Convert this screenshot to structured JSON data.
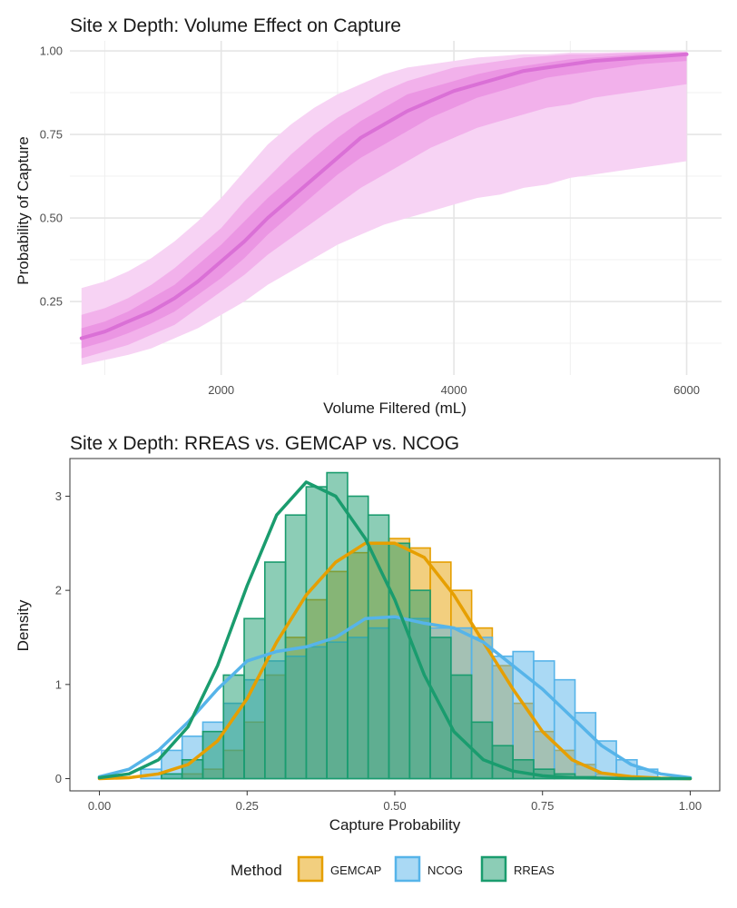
{
  "chart_data": [
    {
      "type": "line",
      "title": "Site x Depth: Volume Effect on Capture",
      "xlabel": "Volume Filtered (mL)",
      "ylabel": "Probability of Capture",
      "xlim": [
        700,
        6300
      ],
      "ylim": [
        0.03,
        1.03
      ],
      "xticks": [
        2000,
        4000,
        6000
      ],
      "xtick_labels": [
        "2000",
        "4000",
        "6000"
      ],
      "yticks": [
        0.25,
        0.5,
        0.75,
        1.0
      ],
      "ytick_labels": [
        "0.25",
        "0.50",
        "0.75",
        "1.00"
      ],
      "grid": true,
      "line_color": "#da70d6",
      "x": [
        800,
        1000,
        1200,
        1400,
        1600,
        1800,
        2000,
        2200,
        2400,
        2600,
        2800,
        3000,
        3200,
        3400,
        3600,
        3800,
        4000,
        4200,
        4400,
        4600,
        4800,
        5000,
        5200,
        5400,
        5600,
        5800,
        6000
      ],
      "median": [
        0.14,
        0.16,
        0.19,
        0.22,
        0.26,
        0.31,
        0.37,
        0.43,
        0.5,
        0.56,
        0.62,
        0.68,
        0.74,
        0.78,
        0.82,
        0.85,
        0.88,
        0.9,
        0.92,
        0.94,
        0.95,
        0.96,
        0.97,
        0.975,
        0.98,
        0.985,
        0.99
      ],
      "bands": [
        {
          "level": "outer",
          "lower": [
            0.06,
            0.075,
            0.09,
            0.11,
            0.14,
            0.17,
            0.21,
            0.25,
            0.3,
            0.34,
            0.38,
            0.42,
            0.45,
            0.48,
            0.5,
            0.52,
            0.54,
            0.56,
            0.57,
            0.59,
            0.6,
            0.62,
            0.63,
            0.64,
            0.65,
            0.66,
            0.67
          ],
          "upper": [
            0.29,
            0.31,
            0.34,
            0.38,
            0.43,
            0.49,
            0.56,
            0.64,
            0.72,
            0.78,
            0.83,
            0.87,
            0.9,
            0.93,
            0.95,
            0.96,
            0.97,
            0.98,
            0.985,
            0.99,
            0.99,
            0.995,
            0.995,
            0.996,
            0.997,
            0.998,
            0.999
          ]
        },
        {
          "level": "middle",
          "lower": [
            0.08,
            0.1,
            0.12,
            0.15,
            0.18,
            0.23,
            0.28,
            0.33,
            0.39,
            0.44,
            0.49,
            0.54,
            0.59,
            0.63,
            0.67,
            0.71,
            0.74,
            0.77,
            0.79,
            0.81,
            0.83,
            0.84,
            0.86,
            0.87,
            0.88,
            0.89,
            0.9
          ],
          "upper": [
            0.21,
            0.23,
            0.26,
            0.3,
            0.35,
            0.41,
            0.47,
            0.55,
            0.62,
            0.69,
            0.75,
            0.8,
            0.84,
            0.88,
            0.91,
            0.93,
            0.95,
            0.96,
            0.97,
            0.98,
            0.985,
            0.99,
            0.99,
            0.993,
            0.995,
            0.996,
            0.997
          ]
        },
        {
          "level": "inner",
          "lower": [
            0.11,
            0.13,
            0.155,
            0.185,
            0.22,
            0.27,
            0.32,
            0.38,
            0.45,
            0.51,
            0.57,
            0.63,
            0.68,
            0.72,
            0.76,
            0.8,
            0.83,
            0.86,
            0.88,
            0.9,
            0.92,
            0.93,
            0.94,
            0.95,
            0.96,
            0.965,
            0.97
          ],
          "upper": [
            0.17,
            0.19,
            0.22,
            0.26,
            0.3,
            0.36,
            0.42,
            0.49,
            0.56,
            0.62,
            0.68,
            0.74,
            0.79,
            0.83,
            0.87,
            0.89,
            0.91,
            0.93,
            0.945,
            0.955,
            0.965,
            0.975,
            0.98,
            0.985,
            0.99,
            0.99,
            0.993
          ]
        }
      ],
      "band_colors": [
        "#f7d3f4",
        "#f2b1eb",
        "#eb96e3"
      ]
    },
    {
      "type": "histogram",
      "title": "Site x Depth: RREAS vs. GEMCAP vs. NCOG",
      "xlabel": "Capture Probability",
      "ylabel": "Density",
      "xlim": [
        -0.05,
        1.05
      ],
      "ylim": [
        -0.13,
        3.4
      ],
      "xticks": [
        0,
        0.25,
        0.5,
        0.75,
        1.0
      ],
      "xtick_labels": [
        "0.00",
        "0.25",
        "0.50",
        "0.75",
        "1.00"
      ],
      "yticks": [
        0,
        1,
        2,
        3
      ],
      "ytick_labels": [
        "0",
        "1",
        "2",
        "3"
      ],
      "bin_edges": [
        0.0,
        0.035,
        0.07,
        0.105,
        0.14,
        0.175,
        0.21,
        0.245,
        0.28,
        0.315,
        0.35,
        0.385,
        0.42,
        0.455,
        0.49,
        0.525,
        0.56,
        0.595,
        0.63,
        0.665,
        0.7,
        0.735,
        0.77,
        0.805,
        0.84,
        0.875,
        0.91,
        0.945,
        0.98
      ],
      "density_x": [
        0.0,
        0.05,
        0.1,
        0.15,
        0.2,
        0.25,
        0.3,
        0.35,
        0.4,
        0.45,
        0.5,
        0.55,
        0.6,
        0.65,
        0.7,
        0.75,
        0.8,
        0.85,
        0.9,
        0.95,
        1.0
      ],
      "series": [
        {
          "name": "GEMCAP",
          "color": "#e69f00",
          "hist": [
            0,
            0,
            0,
            0,
            0.05,
            0.1,
            0.3,
            0.6,
            1.1,
            1.5,
            1.9,
            2.2,
            2.4,
            2.5,
            2.55,
            2.45,
            2.3,
            2.0,
            1.6,
            1.2,
            0.8,
            0.5,
            0.3,
            0.15,
            0.05,
            0.02,
            0,
            0
          ],
          "density": [
            0,
            0.01,
            0.05,
            0.15,
            0.4,
            0.85,
            1.45,
            1.95,
            2.3,
            2.5,
            2.5,
            2.35,
            1.95,
            1.45,
            0.95,
            0.5,
            0.2,
            0.06,
            0.02,
            0.005,
            0
          ]
        },
        {
          "name": "NCOG",
          "color": "#56b4e9",
          "hist": [
            0,
            0,
            0.1,
            0.3,
            0.45,
            0.6,
            0.8,
            1.05,
            1.25,
            1.3,
            1.4,
            1.45,
            1.5,
            1.6,
            1.7,
            1.7,
            1.6,
            1.6,
            1.5,
            1.3,
            1.35,
            1.25,
            1.05,
            0.7,
            0.4,
            0.2,
            0.1,
            0
          ],
          "density": [
            0.02,
            0.1,
            0.3,
            0.6,
            0.95,
            1.25,
            1.35,
            1.4,
            1.5,
            1.7,
            1.72,
            1.65,
            1.6,
            1.45,
            1.2,
            0.95,
            0.65,
            0.35,
            0.15,
            0.05,
            0.01
          ]
        },
        {
          "name": "RREAS",
          "color": "#1a9c6e",
          "hist": [
            0,
            0,
            0,
            0.05,
            0.2,
            0.5,
            1.1,
            1.7,
            2.3,
            2.8,
            3.1,
            3.25,
            3.0,
            2.8,
            2.5,
            2.0,
            1.5,
            1.1,
            0.6,
            0.35,
            0.2,
            0.1,
            0.05,
            0.02,
            0,
            0,
            0,
            0
          ],
          "density": [
            0.01,
            0.05,
            0.2,
            0.55,
            1.2,
            2.05,
            2.8,
            3.15,
            3.0,
            2.55,
            1.9,
            1.1,
            0.5,
            0.2,
            0.08,
            0.03,
            0.01,
            0.005,
            0,
            0,
            0
          ]
        }
      ],
      "legend": {
        "title": "Method",
        "position": "bottom"
      }
    }
  ]
}
